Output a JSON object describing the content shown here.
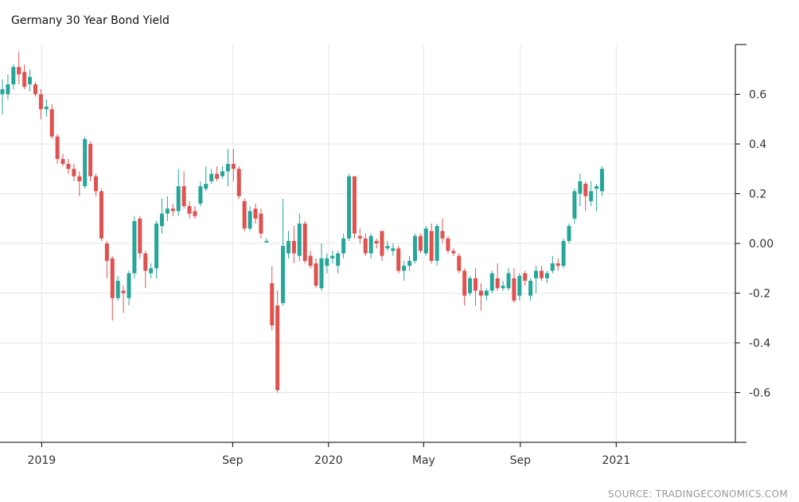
{
  "chart_data": {
    "type": "candlestick",
    "title": "Germany 30 Year Bond Yield",
    "source": "SOURCE: TRADINGECONOMICS.COM",
    "y_ticks": [
      "0.6",
      "0.4",
      "0.2",
      "0.00",
      "-0.2",
      "-0.4",
      "-0.6"
    ],
    "y_tick_values": [
      0.6,
      0.4,
      0.2,
      0.0,
      -0.2,
      -0.4,
      -0.6
    ],
    "ylim": [
      -0.8,
      0.8
    ],
    "x_ticks": [
      "2019",
      "Sep",
      "2020",
      "May",
      "Sep",
      "2021"
    ],
    "x_tick_values": [
      "2019-01",
      "2019-09",
      "2020-01",
      "2020-05",
      "2020-09",
      "2021-01"
    ],
    "x_range": [
      "2018-11-12",
      "2021-04-15"
    ],
    "grid": true,
    "colors": {
      "up": "#26a69a",
      "down": "#e0524f",
      "grid": "#e6e6e6",
      "axis": "#000000"
    },
    "candles": [
      [
        "2018-11-12",
        0.6,
        0.62,
        0.66,
        0.52
      ],
      [
        "2018-11-19",
        0.6,
        0.64,
        0.68,
        0.58
      ],
      [
        "2018-11-26",
        0.64,
        0.71,
        0.72,
        0.62
      ],
      [
        "2018-12-03",
        0.71,
        0.68,
        0.77,
        0.64
      ],
      [
        "2018-12-10",
        0.69,
        0.63,
        0.72,
        0.62
      ],
      [
        "2018-12-17",
        0.64,
        0.67,
        0.7,
        0.61
      ],
      [
        "2018-12-24",
        0.64,
        0.6,
        0.65,
        0.59
      ],
      [
        "2018-12-31",
        0.6,
        0.54,
        0.62,
        0.5
      ],
      [
        "2019-01-07",
        0.54,
        0.55,
        0.58,
        0.51
      ],
      [
        "2019-01-14",
        0.54,
        0.43,
        0.56,
        0.42
      ],
      [
        "2019-01-21",
        0.43,
        0.34,
        0.44,
        0.32
      ],
      [
        "2019-01-28",
        0.34,
        0.32,
        0.36,
        0.31
      ],
      [
        "2019-02-04",
        0.32,
        0.3,
        0.34,
        0.28
      ],
      [
        "2019-02-11",
        0.3,
        0.27,
        0.32,
        0.25
      ],
      [
        "2019-02-18",
        0.27,
        0.25,
        0.29,
        0.19
      ],
      [
        "2019-02-25",
        0.23,
        0.42,
        0.43,
        0.22
      ],
      [
        "2019-03-04",
        0.4,
        0.27,
        0.41,
        0.25
      ],
      [
        "2019-03-11",
        0.27,
        0.21,
        0.28,
        0.19
      ],
      [
        "2019-03-18",
        0.21,
        0.02,
        0.22,
        0.01
      ],
      [
        "2019-03-25",
        0.0,
        -0.07,
        0.01,
        -0.14
      ],
      [
        "2019-04-01",
        -0.06,
        -0.22,
        -0.05,
        -0.31
      ],
      [
        "2019-04-08",
        -0.22,
        -0.15,
        -0.13,
        -0.23
      ],
      [
        "2019-04-15",
        -0.19,
        -0.2,
        -0.17,
        -0.28
      ],
      [
        "2019-04-22",
        -0.22,
        -0.12,
        -0.11,
        -0.25
      ],
      [
        "2019-04-29",
        -0.12,
        0.09,
        0.11,
        -0.14
      ],
      [
        "2019-05-06",
        0.1,
        -0.04,
        0.11,
        -0.06
      ],
      [
        "2019-05-13",
        -0.04,
        -0.11,
        -0.03,
        -0.18
      ],
      [
        "2019-05-20",
        -0.12,
        -0.1,
        -0.08,
        -0.14
      ],
      [
        "2019-05-27",
        -0.1,
        0.08,
        0.09,
        -0.14
      ],
      [
        "2019-06-03",
        0.07,
        0.12,
        0.18,
        0.04
      ],
      [
        "2019-06-10",
        0.12,
        0.14,
        0.19,
        0.09
      ],
      [
        "2019-06-17",
        0.14,
        0.13,
        0.16,
        0.11
      ],
      [
        "2019-06-24",
        0.13,
        0.23,
        0.3,
        0.11
      ],
      [
        "2019-07-01",
        0.23,
        0.15,
        0.29,
        0.14
      ],
      [
        "2019-07-08",
        0.15,
        0.12,
        0.17,
        0.1
      ],
      [
        "2019-07-15",
        0.13,
        0.11,
        0.15,
        0.1
      ],
      [
        "2019-07-22",
        0.16,
        0.23,
        0.25,
        0.15
      ],
      [
        "2019-07-29",
        0.22,
        0.24,
        0.31,
        0.21
      ],
      [
        "2019-08-05",
        0.25,
        0.28,
        0.3,
        0.24
      ],
      [
        "2019-08-12",
        0.28,
        0.26,
        0.31,
        0.25
      ],
      [
        "2019-08-19",
        0.27,
        0.29,
        0.31,
        0.26
      ],
      [
        "2019-08-26",
        0.29,
        0.32,
        0.38,
        0.23
      ],
      [
        "2019-09-02",
        0.32,
        0.3,
        0.38,
        0.25
      ],
      [
        "2019-09-09",
        0.3,
        0.19,
        0.31,
        0.18
      ],
      [
        "2019-09-16",
        0.17,
        0.06,
        0.18,
        0.05
      ],
      [
        "2019-09-23",
        0.06,
        0.13,
        0.15,
        0.05
      ],
      [
        "2019-09-30",
        0.14,
        0.1,
        0.16,
        0.08
      ],
      [
        "2019-10-07",
        0.12,
        0.04,
        0.14,
        0.02
      ],
      [
        "2019-10-14",
        0.01,
        0.01,
        0.02,
        0.01
      ],
      [
        "2019-10-21",
        -0.16,
        -0.33,
        -0.09,
        -0.35
      ],
      [
        "2019-10-28",
        -0.25,
        -0.59,
        -0.19,
        -0.6
      ],
      [
        "2019-11-04",
        -0.24,
        -0.01,
        0.18,
        -0.25
      ],
      [
        "2019-11-11",
        -0.04,
        0.01,
        0.05,
        -0.06
      ],
      [
        "2019-11-18",
        0.01,
        -0.04,
        0.07,
        -0.08
      ],
      [
        "2019-11-25",
        -0.05,
        0.08,
        0.12,
        -0.07
      ],
      [
        "2019-12-02",
        0.08,
        -0.07,
        0.09,
        -0.08
      ],
      [
        "2019-12-09",
        -0.05,
        -0.09,
        -0.03,
        -0.1
      ],
      [
        "2019-12-16",
        -0.08,
        -0.17,
        -0.06,
        -0.18
      ],
      [
        "2019-12-23",
        -0.18,
        -0.06,
        0.0,
        -0.19
      ],
      [
        "2019-12-30",
        -0.09,
        -0.06,
        -0.04,
        -0.12
      ],
      [
        "2020-01-06",
        -0.06,
        -0.05,
        -0.03,
        -0.08
      ],
      [
        "2020-01-13",
        -0.09,
        -0.04,
        -0.03,
        -0.12
      ],
      [
        "2020-01-20",
        -0.04,
        0.02,
        0.04,
        -0.06
      ],
      [
        "2020-01-27",
        0.02,
        0.27,
        0.28,
        0.01
      ],
      [
        "2020-02-03",
        0.27,
        0.04,
        0.27,
        0.02
      ],
      [
        "2020-02-10",
        0.03,
        0.02,
        0.06,
        0.0
      ],
      [
        "2020-02-17",
        0.02,
        -0.04,
        0.04,
        -0.05
      ],
      [
        "2020-02-24",
        -0.04,
        0.03,
        0.04,
        -0.06
      ],
      [
        "2020-03-02",
        0.01,
        0.0,
        0.02,
        -0.02
      ],
      [
        "2020-03-09",
        0.05,
        -0.05,
        0.05,
        -0.07
      ],
      [
        "2020-03-16",
        -0.02,
        -0.01,
        0.01,
        -0.03
      ],
      [
        "2020-03-23",
        -0.03,
        -0.02,
        0.0,
        -0.05
      ],
      [
        "2020-03-30",
        -0.02,
        -0.11,
        -0.01,
        -0.12
      ],
      [
        "2020-04-06",
        -0.11,
        -0.09,
        -0.07,
        -0.15
      ],
      [
        "2020-04-13",
        -0.09,
        -0.07,
        -0.05,
        -0.11
      ],
      [
        "2020-04-20",
        -0.07,
        0.03,
        0.04,
        -0.08
      ],
      [
        "2020-04-27",
        0.03,
        -0.03,
        0.04,
        -0.04
      ],
      [
        "2020-05-04",
        -0.04,
        0.06,
        0.07,
        -0.05
      ],
      [
        "2020-05-11",
        0.05,
        -0.07,
        0.08,
        -0.08
      ],
      [
        "2020-05-18",
        -0.07,
        0.07,
        0.08,
        -0.09
      ],
      [
        "2020-05-25",
        0.05,
        0.02,
        0.1,
        0.0
      ],
      [
        "2020-06-01",
        0.02,
        -0.03,
        0.03,
        -0.04
      ],
      [
        "2020-06-08",
        -0.03,
        -0.04,
        -0.02,
        -0.05
      ],
      [
        "2020-06-15",
        -0.05,
        -0.11,
        -0.04,
        -0.12
      ],
      [
        "2020-06-22",
        -0.11,
        -0.21,
        -0.1,
        -0.25
      ],
      [
        "2020-06-29",
        -0.2,
        -0.14,
        -0.13,
        -0.21
      ],
      [
        "2020-07-06",
        -0.14,
        -0.19,
        -0.1,
        -0.25
      ],
      [
        "2020-07-13",
        -0.19,
        -0.21,
        -0.16,
        -0.27
      ],
      [
        "2020-07-20",
        -0.21,
        -0.19,
        -0.18,
        -0.23
      ],
      [
        "2020-07-27",
        -0.19,
        -0.12,
        -0.11,
        -0.2
      ],
      [
        "2020-08-03",
        -0.14,
        -0.18,
        -0.08,
        -0.19
      ],
      [
        "2020-08-10",
        -0.18,
        -0.17,
        -0.15,
        -0.19
      ],
      [
        "2020-08-17",
        -0.18,
        -0.12,
        -0.1,
        -0.19
      ],
      [
        "2020-08-24",
        -0.14,
        -0.23,
        -0.1,
        -0.24
      ],
      [
        "2020-08-31",
        -0.21,
        -0.13,
        -0.12,
        -0.23
      ],
      [
        "2020-09-07",
        -0.12,
        -0.15,
        -0.11,
        -0.17
      ],
      [
        "2020-09-14",
        -0.21,
        -0.15,
        -0.14,
        -0.23
      ],
      [
        "2020-09-21",
        -0.14,
        -0.11,
        -0.09,
        -0.2
      ],
      [
        "2020-09-28",
        -0.11,
        -0.14,
        -0.09,
        -0.15
      ],
      [
        "2020-10-05",
        -0.14,
        -0.12,
        -0.11,
        -0.16
      ],
      [
        "2020-10-12",
        -0.11,
        -0.08,
        -0.05,
        -0.12
      ],
      [
        "2020-10-19",
        -0.08,
        -0.09,
        -0.06,
        -0.11
      ],
      [
        "2020-10-26",
        -0.09,
        0.01,
        0.02,
        -0.1
      ],
      [
        "2020-11-02",
        0.01,
        0.07,
        0.08,
        0.0
      ],
      [
        "2020-11-09",
        0.1,
        0.21,
        0.22,
        0.08
      ],
      [
        "2020-11-16",
        0.2,
        0.25,
        0.28,
        0.15
      ],
      [
        "2020-11-23",
        0.24,
        0.19,
        0.25,
        0.13
      ],
      [
        "2020-11-30",
        0.17,
        0.21,
        0.25,
        0.15
      ],
      [
        "2020-12-07",
        0.22,
        0.23,
        0.24,
        0.13
      ],
      [
        "2020-12-14",
        0.21,
        0.3,
        0.31,
        0.19
      ]
    ]
  }
}
